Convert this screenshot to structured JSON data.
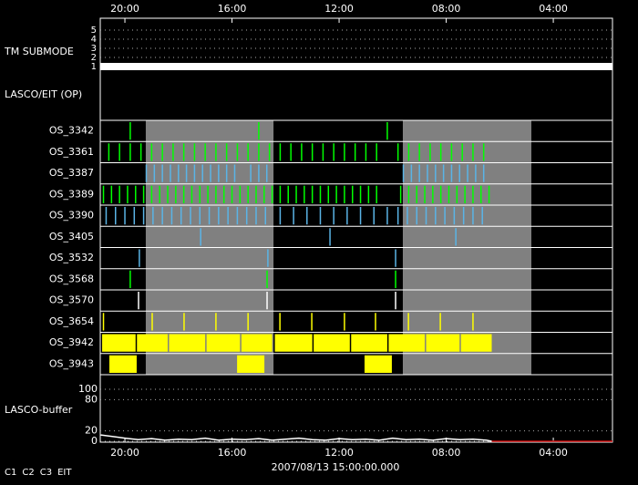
{
  "chart_data": {
    "type": "timeline",
    "title": "2007/08/13 15:00:00.000",
    "xlim": [
      -0.92,
      18.21
    ],
    "xticks": [
      {
        "value": 0,
        "label": "20:00"
      },
      {
        "value": 4,
        "label": "16:00"
      },
      {
        "value": 8,
        "label": "12:00"
      },
      {
        "value": 12,
        "label": "08:00"
      },
      {
        "value": 16,
        "label": "04:00"
      }
    ],
    "shaded": [
      [
        0.78,
        5.55
      ],
      [
        10.38,
        15.18
      ]
    ],
    "submode": {
      "label": "TM SUBMODE",
      "ylim": [
        0.5,
        5.5
      ],
      "yticks": [
        1,
        2,
        3,
        4,
        5
      ],
      "x": [
        -0.92,
        18.21
      ],
      "values": [
        1,
        1
      ],
      "color": "#ffffff"
    },
    "header": "LASCO/EIT (OP)",
    "rows": [
      {
        "name": "OS_3342",
        "color": "#00ff00",
        "events": [
          0.2,
          5.0,
          9.8
        ]
      },
      {
        "name": "OS_3361",
        "color": "#00ff00",
        "events": [
          -0.6,
          -0.2,
          0.2,
          0.6,
          1.0,
          1.4,
          1.8,
          2.2,
          2.6,
          3.0,
          3.4,
          3.8,
          4.2,
          4.6,
          5.0,
          5.4,
          5.8,
          6.2,
          6.6,
          7.0,
          7.4,
          7.8,
          8.2,
          8.6,
          9.0,
          9.4,
          10.2,
          10.6,
          11.0,
          11.4,
          11.8,
          12.2,
          12.6,
          13.0,
          13.4
        ]
      },
      {
        "name": "OS_3387",
        "color": "#5ab4e6",
        "events": [
          0.8,
          1.1,
          1.4,
          1.7,
          2.0,
          2.3,
          2.6,
          2.9,
          3.2,
          3.5,
          3.8,
          4.1,
          4.7,
          5.0,
          5.3,
          10.4,
          10.7,
          11.0,
          11.3,
          11.6,
          11.9,
          12.2,
          12.5,
          12.8,
          13.1,
          13.4
        ]
      },
      {
        "name": "OS_3389",
        "color": "#00ff00",
        "events": [
          -0.8,
          -0.5,
          -0.2,
          0.1,
          0.4,
          0.7,
          1.0,
          1.3,
          1.6,
          1.9,
          2.2,
          2.5,
          2.8,
          3.1,
          3.4,
          3.7,
          4.0,
          4.3,
          4.6,
          4.9,
          5.2,
          5.5,
          5.8,
          6.1,
          6.4,
          6.7,
          7.0,
          7.3,
          7.6,
          7.9,
          8.2,
          8.5,
          8.8,
          9.1,
          9.4,
          10.3,
          10.6,
          10.9,
          11.2,
          11.5,
          11.8,
          12.1,
          12.4,
          12.7,
          13.0,
          13.3,
          13.6
        ]
      },
      {
        "name": "OS_3390",
        "color": "#5ab4e6",
        "events": [
          -0.7,
          -0.35,
          0,
          0.35,
          0.7,
          1.05,
          1.4,
          1.75,
          2.1,
          2.45,
          2.8,
          3.15,
          3.5,
          3.85,
          4.2,
          4.55,
          4.9,
          5.25,
          5.8,
          6.3,
          6.8,
          7.3,
          7.8,
          8.3,
          8.8,
          9.3,
          9.8,
          10.2,
          10.55,
          10.9,
          11.25,
          11.6,
          11.95,
          12.3,
          12.65,
          13.0,
          13.35
        ]
      },
      {
        "name": "OS_3405",
        "color": "#5ab4e6",
        "events": [
          2.83,
          7.66,
          12.36
        ]
      },
      {
        "name": "OS_3532",
        "color": "#5ab4e6",
        "events": [
          0.54,
          5.34,
          10.11
        ]
      },
      {
        "name": "OS_3568",
        "color": "#00ff00",
        "events": [
          0.2,
          5.31,
          10.11
        ]
      },
      {
        "name": "OS_3570",
        "color": "#ffffff",
        "events": [
          0.51,
          5.31,
          10.11
        ]
      },
      {
        "name": "OS_3654",
        "color": "#ffff00",
        "events": [
          -0.8,
          1.02,
          2.21,
          3.4,
          4.6,
          5.79,
          6.98,
          8.2,
          9.36,
          10.59,
          11.78,
          13.0
        ]
      },
      {
        "name": "OS_3942",
        "color": "#ffff00",
        "spans": [
          [
            -0.85,
            0.4
          ],
          [
            0.45,
            1.6
          ],
          [
            1.65,
            3.0
          ],
          [
            3.05,
            4.3
          ],
          [
            4.35,
            5.5
          ],
          [
            5.6,
            7.0
          ],
          [
            7.05,
            8.4
          ],
          [
            8.45,
            9.8
          ],
          [
            9.85,
            11.2
          ],
          [
            11.25,
            12.5
          ],
          [
            12.55,
            13.7
          ]
        ]
      },
      {
        "name": "OS_3943",
        "color": "#ffff00",
        "spans": [
          [
            -0.58,
            0.44
          ],
          [
            4.19,
            5.21
          ],
          [
            8.95,
            9.97
          ]
        ]
      }
    ],
    "buffer": {
      "label": "LASCO-buffer",
      "ylim": [
        0,
        100
      ],
      "yticks": [
        0,
        20,
        80,
        100
      ],
      "series": [
        {
          "color": "#ffffff",
          "x": [
            -0.9,
            0,
            0.5,
            1,
            1.5,
            2,
            2.5,
            3,
            3.5,
            4,
            4.5,
            5,
            5.5,
            6,
            6.5,
            7,
            7.5,
            8,
            8.5,
            9,
            9.5,
            10,
            10.5,
            11,
            11.5,
            12,
            12.5,
            13,
            13.5,
            13.7
          ],
          "values": [
            12,
            6,
            3,
            5,
            2,
            4,
            3,
            6,
            2,
            4,
            3,
            5,
            2,
            4,
            6,
            3,
            2,
            5,
            3,
            4,
            2,
            6,
            3,
            4,
            2,
            5,
            3,
            4,
            2,
            0
          ]
        },
        {
          "color": "#c00000",
          "x": [
            13.7,
            18.21
          ],
          "values": [
            0,
            0
          ]
        }
      ]
    },
    "legend": [
      {
        "name": "C1",
        "color": "#ff2020"
      },
      {
        "name": "C2",
        "color": "#00ff00"
      },
      {
        "name": "C3",
        "color": "#ffffff"
      },
      {
        "name": "EIT",
        "color": "#ffffff"
      }
    ]
  }
}
